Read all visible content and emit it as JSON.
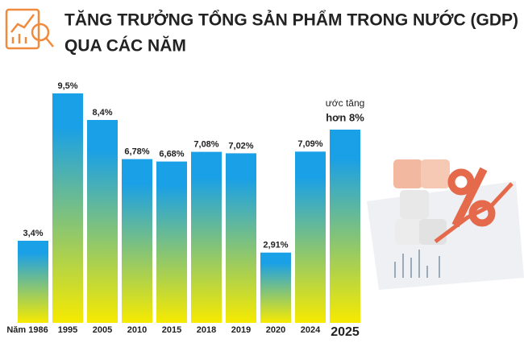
{
  "chart_data": {
    "type": "bar",
    "title": [
      "TĂNG TRƯỞNG TỔNG SẢN PHẨM TRONG NƯỚC (GDP)",
      "QUA CÁC NĂM"
    ],
    "categories": [
      "Năm 1986",
      "1995",
      "2005",
      "2010",
      "2015",
      "2018",
      "2019",
      "2020",
      "2024",
      "2025"
    ],
    "values": [
      3.4,
      9.5,
      8.4,
      6.78,
      6.68,
      7.08,
      7.02,
      2.91,
      7.09,
      8
    ],
    "value_labels": [
      "3,4%",
      "9,5%",
      "8,4%",
      "6,78%",
      "6,68%",
      "7,08%",
      "7,02%",
      "2,91%",
      "7,09%",
      null
    ],
    "annotation": [
      "ước tăng",
      "hơn 8%"
    ],
    "color": [
      "#1aa0e6",
      "#f7ea00"
    ]
  }
}
